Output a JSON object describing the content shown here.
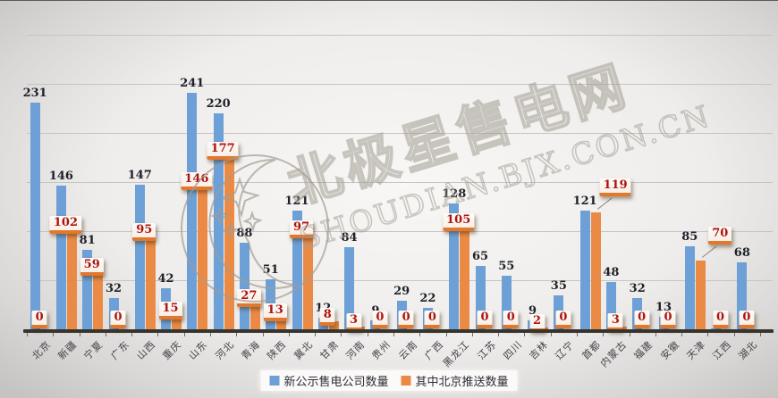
{
  "chart_data": {
    "type": "bar",
    "title": "",
    "categories": [
      "北京",
      "新疆",
      "宁夏",
      "广东",
      "山西",
      "重庆",
      "山东",
      "河北",
      "青海",
      "陕西",
      "冀北",
      "甘肃",
      "河南",
      "贵州",
      "云南",
      "广西",
      "黑龙江",
      "江苏",
      "四川",
      "吉林",
      "辽宁",
      "首都",
      "内蒙古",
      "福建",
      "安徽",
      "天津",
      "江西",
      "湖北"
    ],
    "series": [
      {
        "name": "新公示售电公司数量",
        "color": "#6DA0D6",
        "label_color": "#1E2128",
        "values": [
          231,
          146,
          81,
          32,
          147,
          42,
          241,
          220,
          88,
          51,
          121,
          12,
          84,
          9,
          29,
          22,
          128,
          65,
          55,
          9,
          35,
          121,
          48,
          32,
          13,
          85,
          1,
          68
        ]
      },
      {
        "name": "其中北京推送数量",
        "color": "#EB8A45",
        "label_color": "#AE1411",
        "values": [
          0,
          102,
          59,
          0,
          95,
          15,
          146,
          177,
          27,
          13,
          97,
          8,
          3,
          0,
          0,
          0,
          105,
          0,
          0,
          2,
          0,
          119,
          3,
          0,
          0,
          70,
          0,
          0
        ]
      }
    ],
    "ylim": [
      0,
      300
    ],
    "gridline_step": 50,
    "grid": true,
    "legend_position": "bottom",
    "xlabel": "",
    "ylabel": "",
    "callout_indices": [
      21,
      25
    ]
  },
  "watermark": {
    "brand": "北极星售电网",
    "url": "SHOUDIAN.BJX.CON.CN",
    "logo_icon": "star-moon-circle-logo"
  },
  "colors": {
    "background_center": "#F7F6F4",
    "background_edge": "#C6C4C2",
    "gridline": "#C7C5C2",
    "axis": "#37332D",
    "orange_label_border": "#E2772E",
    "watermark_line": "#A09A92"
  }
}
